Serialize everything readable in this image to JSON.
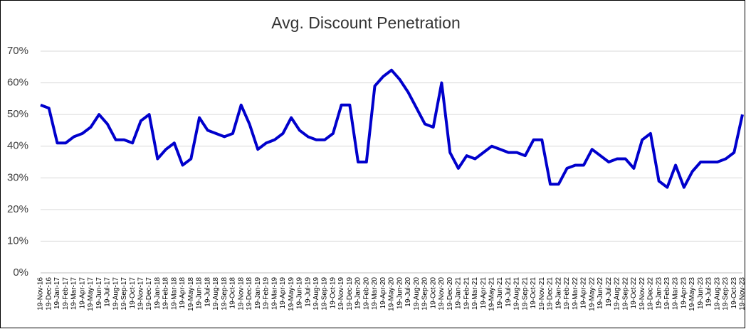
{
  "chart_data": {
    "type": "line",
    "title": "Avg. Discount Penetration",
    "categories": [
      "19-Nov-16",
      "19-Dec-16",
      "19-Jan-17",
      "19-Feb-17",
      "19-Mar-17",
      "19-Apr-17",
      "19-May-17",
      "19-Jun-17",
      "19-Jul-17",
      "19-Aug-17",
      "19-Sep-17",
      "19-Oct-17",
      "19-Nov-17",
      "19-Dec-17",
      "19-Jan-18",
      "19-Feb-18",
      "19-Mar-18",
      "19-Apr-18",
      "19-May-18",
      "19-Jun-18",
      "19-Jul-18",
      "19-Aug-18",
      "19-Sep-18",
      "19-Oct-18",
      "19-Nov-18",
      "19-Dec-18",
      "19-Jan-19",
      "19-Feb-19",
      "19-Mar-19",
      "19-Apr-19",
      "19-May-19",
      "19-Jun-19",
      "19-Jul-19",
      "19-Aug-19",
      "19-Sep-19",
      "19-Oct-19",
      "19-Nov-19",
      "19-Dec-19",
      "19-Jan-20",
      "19-Feb-20",
      "19-Mar-20",
      "19-Apr-20",
      "19-May-20",
      "19-Jun-20",
      "19-Jul-20",
      "19-Aug-20",
      "19-Sep-20",
      "19-Oct-20",
      "19-Nov-20",
      "19-Dec-20",
      "19-Jan-21",
      "19-Feb-21",
      "19-Mar-21",
      "19-Apr-21",
      "19-May-21",
      "19-Jun-21",
      "19-Jul-21",
      "19-Aug-21",
      "19-Sep-21",
      "19-Oct-21",
      "19-Nov-21",
      "19-Dec-21",
      "19-Jan-22",
      "19-Feb-22",
      "19-Mar-22",
      "19-Apr-22",
      "19-May-22",
      "19-Jun-22",
      "19-Jul-22",
      "19-Aug-22",
      "19-Sep-22",
      "19-Oct-22",
      "19-Nov-22",
      "19-Dec-22",
      "19-Jan-23",
      "19-Feb-23",
      "19-Mar-23",
      "19-Apr-23",
      "19-May-23",
      "19-Jun-23",
      "19-Jul-23",
      "19-Aug-23",
      "19-Sep-23",
      "19-Oct-23",
      "19-Nov-23"
    ],
    "series": [
      {
        "color": "#0000cc",
        "values": [
          53,
          52,
          41,
          41,
          43,
          44,
          46,
          50,
          47,
          42,
          42,
          41,
          48,
          50,
          36,
          39,
          41,
          34,
          36,
          49,
          45,
          44,
          43,
          44,
          53,
          47,
          39,
          41,
          42,
          44,
          49,
          45,
          43,
          42,
          42,
          44,
          53,
          53,
          35,
          35,
          59,
          62,
          64,
          61,
          57,
          52,
          47,
          46,
          60,
          38,
          33,
          37,
          36,
          38,
          40,
          39,
          38,
          38,
          37,
          42,
          42,
          28,
          28,
          33,
          34,
          34,
          39,
          37,
          35,
          36,
          36,
          33,
          42,
          44,
          29,
          27,
          34,
          27,
          32,
          35,
          35,
          35,
          36,
          38,
          50
        ]
      }
    ],
    "ylim": [
      0,
      70
    ],
    "yticks": [
      {
        "value": 0,
        "label": "0%"
      },
      {
        "value": 10,
        "label": "10%"
      },
      {
        "value": 20,
        "label": "20%"
      },
      {
        "value": 30,
        "label": "30%"
      },
      {
        "value": 40,
        "label": "40%"
      },
      {
        "value": 50,
        "label": "50%"
      },
      {
        "value": 60,
        "label": "60%"
      },
      {
        "value": 70,
        "label": "70%"
      }
    ],
    "grid": true
  }
}
